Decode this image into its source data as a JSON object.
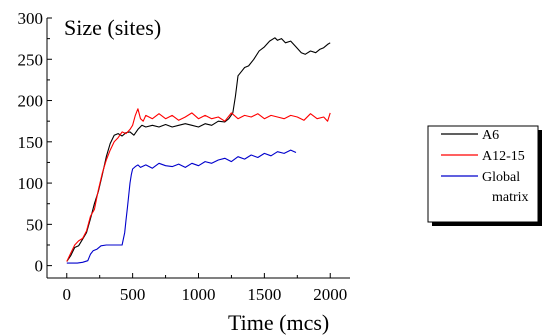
{
  "chart_data": {
    "type": "line",
    "xlabel": "Time (mcs)",
    "ylabel": "Size (sites)",
    "xlim": [
      -150,
      2150
    ],
    "ylim": [
      -15,
      300
    ],
    "x_ticks": [
      0,
      500,
      1000,
      1500,
      2000
    ],
    "y_ticks": [
      0,
      50,
      100,
      150,
      200,
      250,
      300
    ],
    "x_tick_labels": [
      "0",
      "500",
      "1000",
      "1500",
      "2000"
    ],
    "y_tick_labels": [
      "0",
      "50",
      "100",
      "150",
      "200",
      "250",
      "300"
    ],
    "grid": false,
    "legend_position": "right",
    "series": [
      {
        "name": "A6",
        "color": "#000000",
        "x": [
          0,
          30,
          60,
          90,
          120,
          150,
          180,
          210,
          240,
          270,
          300,
          330,
          360,
          390,
          420,
          450,
          480,
          510,
          540,
          570,
          600,
          650,
          700,
          750,
          800,
          850,
          900,
          950,
          1000,
          1050,
          1100,
          1150,
          1200,
          1230,
          1260,
          1280,
          1300,
          1330,
          1350,
          1380,
          1420,
          1460,
          1500,
          1540,
          1580,
          1600,
          1630,
          1660,
          1700,
          1740,
          1780,
          1810,
          1850,
          1890,
          1920,
          1950,
          1980,
          2000
        ],
        "y": [
          5,
          12,
          22,
          24,
          32,
          40,
          57,
          75,
          90,
          110,
          132,
          148,
          158,
          160,
          157,
          161,
          162,
          158,
          165,
          170,
          168,
          170,
          168,
          171,
          168,
          170,
          172,
          170,
          168,
          172,
          170,
          175,
          174,
          178,
          185,
          205,
          230,
          236,
          240,
          242,
          250,
          260,
          265,
          272,
          276,
          273,
          275,
          270,
          272,
          265,
          258,
          256,
          260,
          258,
          262,
          264,
          268,
          270
        ]
      },
      {
        "name": "A12-15",
        "color": "#ff0000",
        "x": [
          0,
          30,
          60,
          90,
          120,
          150,
          180,
          210,
          240,
          270,
          300,
          330,
          360,
          390,
          420,
          450,
          480,
          500,
          520,
          540,
          560,
          580,
          600,
          650,
          700,
          750,
          800,
          850,
          900,
          950,
          1000,
          1050,
          1100,
          1150,
          1200,
          1250,
          1300,
          1350,
          1400,
          1450,
          1500,
          1550,
          1600,
          1650,
          1700,
          1750,
          1800,
          1850,
          1900,
          1950,
          1980,
          2000
        ],
        "y": [
          5,
          15,
          25,
          30,
          33,
          42,
          60,
          68,
          92,
          112,
          128,
          140,
          150,
          155,
          162,
          160,
          165,
          170,
          182,
          190,
          178,
          175,
          182,
          178,
          184,
          178,
          182,
          176,
          180,
          185,
          178,
          182,
          178,
          180,
          175,
          185,
          178,
          182,
          180,
          184,
          178,
          182,
          180,
          178,
          182,
          180,
          176,
          184,
          178,
          180,
          175,
          185
        ]
      },
      {
        "name": "Global matrix",
        "color": "#0000cc",
        "x": [
          0,
          40,
          80,
          120,
          160,
          180,
          200,
          230,
          260,
          300,
          340,
          380,
          420,
          440,
          450,
          460,
          470,
          480,
          490,
          500,
          520,
          540,
          560,
          600,
          650,
          700,
          750,
          800,
          850,
          900,
          950,
          1000,
          1050,
          1100,
          1150,
          1200,
          1250,
          1300,
          1350,
          1400,
          1450,
          1500,
          1550,
          1600,
          1650,
          1700,
          1740
        ],
        "y": [
          3,
          3,
          3,
          4,
          6,
          14,
          18,
          20,
          24,
          25,
          25,
          25,
          25,
          40,
          55,
          70,
          85,
          100,
          110,
          117,
          120,
          122,
          119,
          122,
          118,
          124,
          121,
          120,
          123,
          119,
          124,
          121,
          126,
          124,
          128,
          130,
          126,
          132,
          129,
          134,
          131,
          136,
          133,
          138,
          136,
          140,
          137
        ]
      }
    ]
  },
  "legend": {
    "items": [
      {
        "lines": [
          "A6"
        ],
        "color": "#000000"
      },
      {
        "lines": [
          "A12-15"
        ],
        "color": "#ff0000"
      },
      {
        "lines": [
          "Global",
          "matrix"
        ],
        "color": "#0000cc"
      }
    ]
  }
}
